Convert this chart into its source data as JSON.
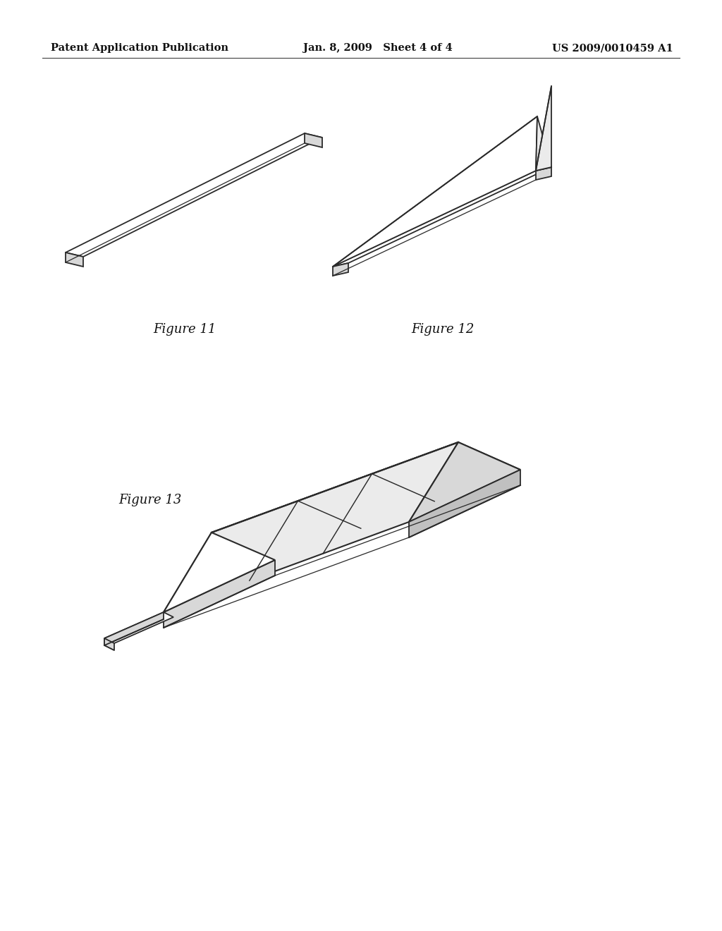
{
  "bg_color": "#ffffff",
  "header_left": "Patent Application Publication",
  "header_mid": "Jan. 8, 2009   Sheet 4 of 4",
  "header_right": "US 2009/0010459 A1",
  "header_fontsize": 10.5,
  "fig11_label": "Figure 11",
  "fig12_label": "Figure 12",
  "fig13_label": "Figure 13",
  "line_color": "#2a2a2a",
  "line_width": 1.3,
  "face_white": "#ffffff",
  "face_light": "#ebebeb",
  "face_mid": "#d8d8d8",
  "face_dark": "#c0c0c0"
}
